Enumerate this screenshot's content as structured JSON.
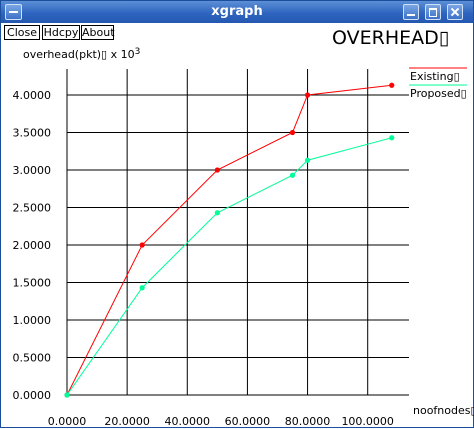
{
  "window": {
    "title": "xgraph"
  },
  "toolbar": {
    "close_label": "Close",
    "hdcpy_label": "Hdcpy",
    "about_label": "About"
  },
  "colors": {
    "existing": "#ff0000",
    "proposed": "#00ff99",
    "titlebar": "#2f65c0"
  },
  "chart_data": {
    "type": "line",
    "title": "OVERHEAD▯",
    "ylabel": "overhead(pkt)▯ x 10",
    "ylabel_exponent": "3",
    "xlabel": "noofnodes▯",
    "xlim": [
      0,
      110
    ],
    "ylim": [
      0,
      4.2
    ],
    "grid": true,
    "legend_position": "top-right",
    "x_ticks": [
      0,
      20,
      40,
      60,
      80,
      100
    ],
    "x_tick_labels": [
      "0.0000",
      "20.0000",
      "40.0000",
      "60.0000",
      "80.0000",
      "100.0000"
    ],
    "y_ticks": [
      0,
      0.5,
      1,
      1.5,
      2,
      2.5,
      3,
      3.5,
      4
    ],
    "y_tick_labels": [
      "0.0000",
      "0.5000",
      "1.0000",
      "1.5000",
      "2.0000",
      "2.5000",
      "3.0000",
      "3.5000",
      "4.0000"
    ],
    "series": [
      {
        "name": "Existing▯",
        "color": "#ff0000",
        "x": [
          0,
          25,
          50,
          75,
          80,
          108
        ],
        "y": [
          0,
          2.0,
          3.0,
          3.5,
          4.0,
          4.13
        ]
      },
      {
        "name": "Proposed▯",
        "color": "#00ff99",
        "x": [
          0,
          25,
          50,
          75,
          80,
          108
        ],
        "y": [
          0,
          1.43,
          2.43,
          2.93,
          3.13,
          3.43
        ]
      }
    ]
  }
}
